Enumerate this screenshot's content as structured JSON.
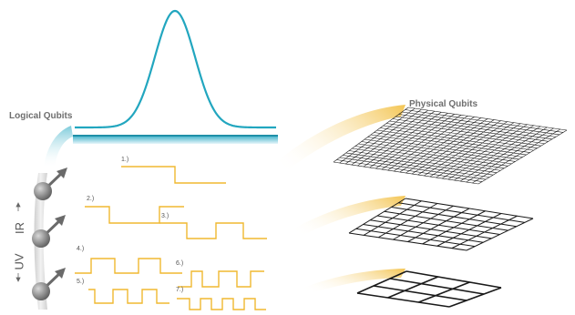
{
  "labels": {
    "logical_qubits": "Logical Qubits",
    "physical_qubits": "Physical Qubits",
    "uv": "UV",
    "ir": "IR"
  },
  "wave_labels": [
    "1.)",
    "2.)",
    "3.)",
    "4.)",
    "5.)",
    "6.)",
    "7.)"
  ],
  "colors": {
    "gaussian": "#22a6bf",
    "bar": "#2aa9c4",
    "wave": "#f0b830",
    "grid": "#1a1a1a",
    "glow": "#f5c85a",
    "sphere": "#8a8a8a",
    "arrow": "#6a6a6a",
    "text": "#6e6e6e"
  }
}
